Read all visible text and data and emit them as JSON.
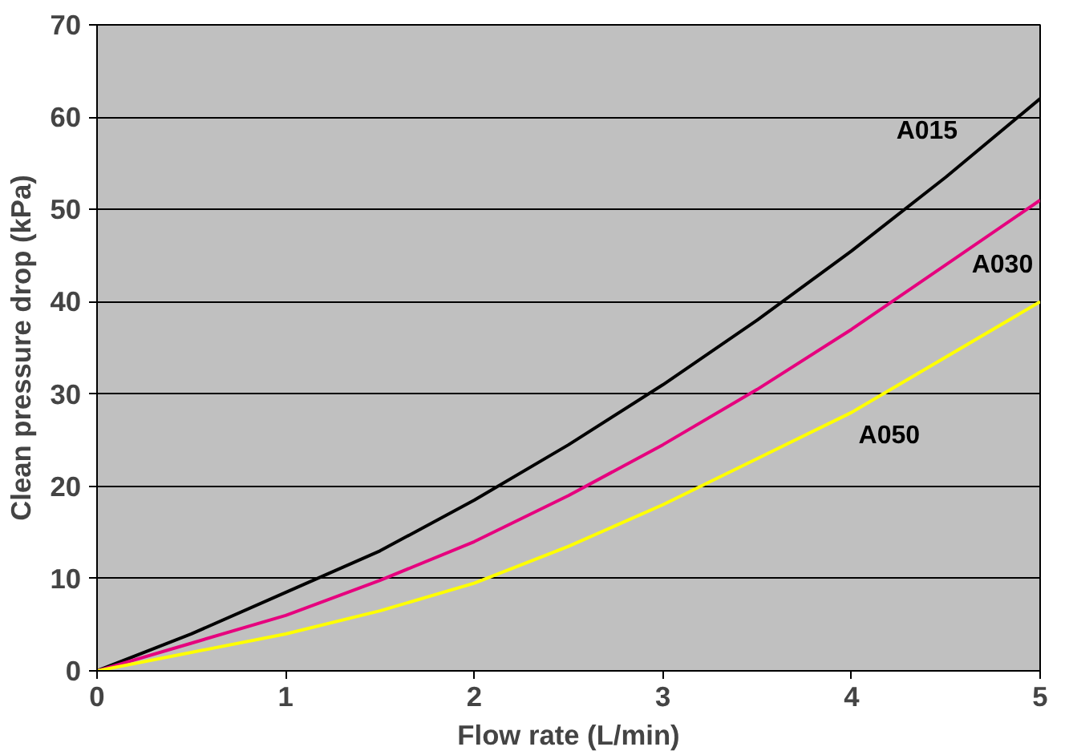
{
  "chart_data": {
    "type": "line",
    "xlabel": "Flow rate (L/min)",
    "ylabel": "Clean pressure drop (kPa)",
    "x": [
      0,
      0.5,
      1,
      1.5,
      2,
      2.5,
      3,
      3.5,
      4,
      4.5,
      5
    ],
    "series": [
      {
        "name": "A015",
        "color": "#000000",
        "values": [
          0,
          4,
          8.5,
          13,
          18.5,
          24.5,
          31,
          38,
          45.5,
          53.5,
          62
        ]
      },
      {
        "name": "A030",
        "color": "#e6007e",
        "values": [
          0,
          3,
          6,
          9.8,
          14,
          19,
          24.5,
          30.5,
          37,
          44,
          51
        ]
      },
      {
        "name": "A050",
        "color": "#ffff00",
        "values": [
          0,
          2,
          4,
          6.5,
          9.5,
          13.5,
          18,
          23,
          28,
          34,
          40
        ]
      }
    ],
    "xlim": [
      0,
      5
    ],
    "ylim": [
      0,
      70
    ],
    "xticks": [
      0,
      1,
      2,
      3,
      4,
      5
    ],
    "yticks": [
      0,
      10,
      20,
      30,
      40,
      50,
      60,
      70
    ],
    "grid": "y",
    "marker": "none",
    "line_style": "solid"
  }
}
